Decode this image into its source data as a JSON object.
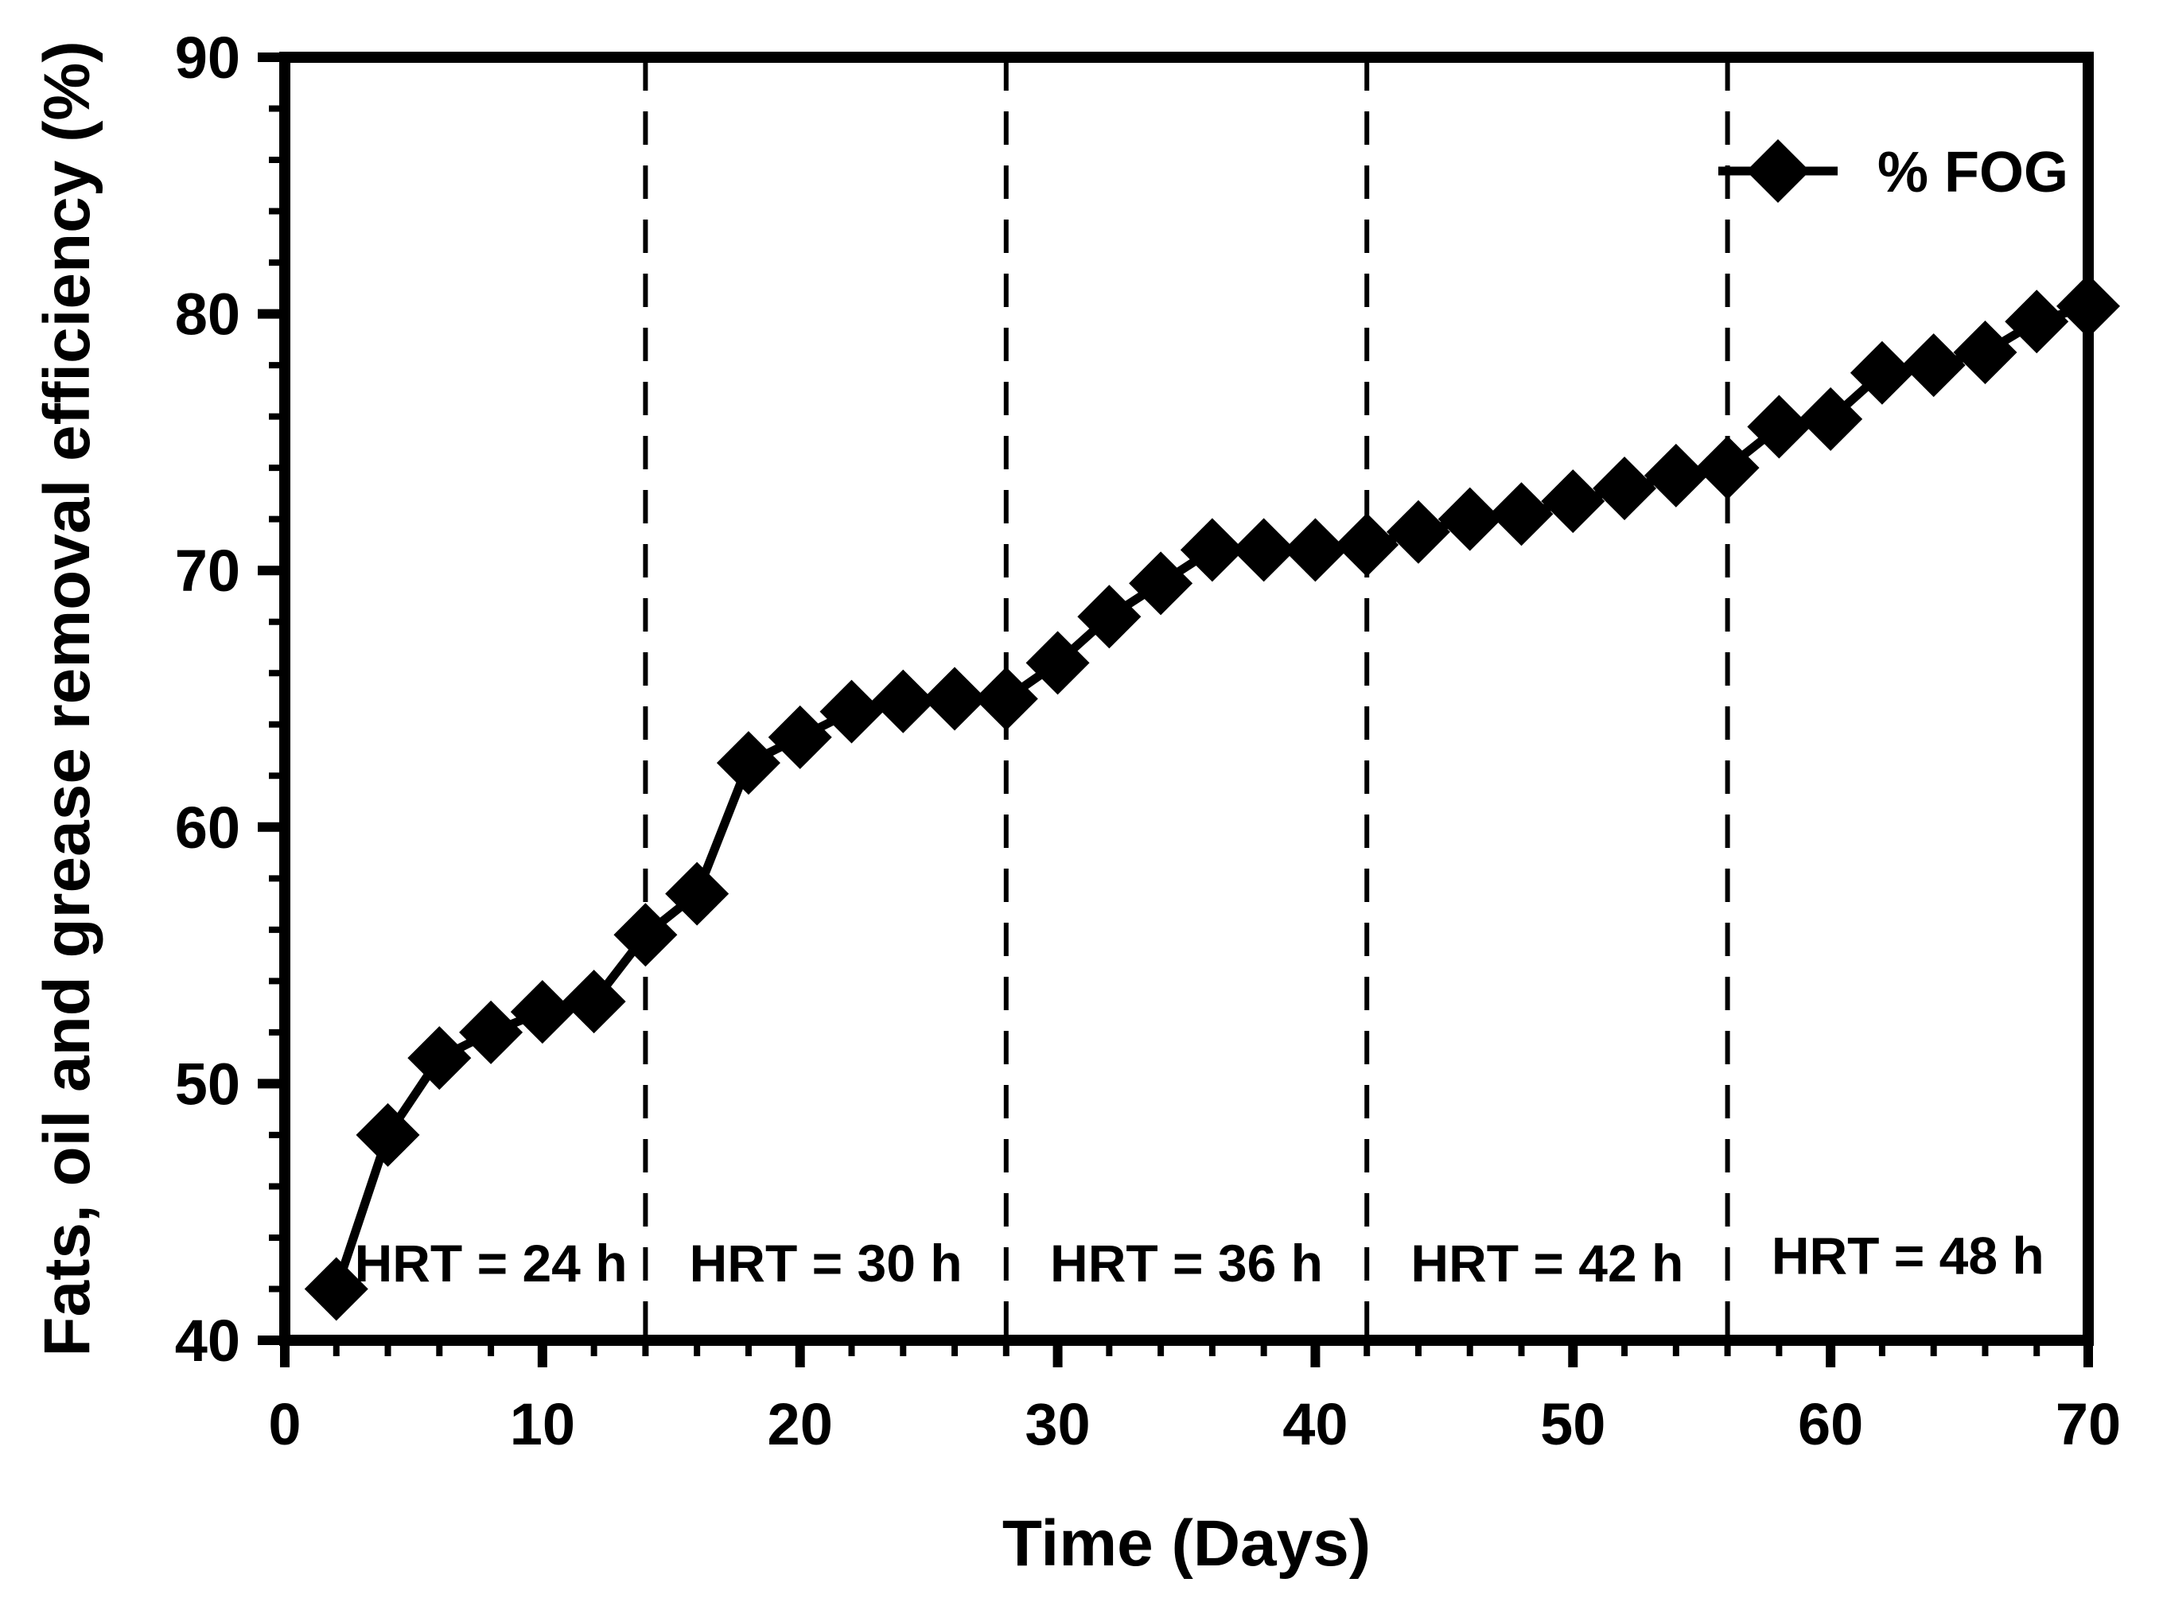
{
  "page": {
    "background": "#ffffff",
    "foreground": "#000000"
  },
  "chart_data": {
    "type": "line",
    "title": "",
    "xlabel": "Time (Days)",
    "ylabel": "Fats, oil and grease removal efficiency (%)",
    "xlim": [
      0,
      70
    ],
    "ylim": [
      40,
      90
    ],
    "x_major_step": 10,
    "x_minor_step": 2,
    "y_major_step": 10,
    "y_minor_step": 2,
    "grid": false,
    "frame": "full-box",
    "line_color": "#000000",
    "marker": "diamond",
    "legend": {
      "label": "% FOG",
      "position": "top-right-inside"
    },
    "dashed_vlines": [
      14,
      28,
      42,
      56
    ],
    "region_labels": [
      {
        "text": "HRT = 24 h",
        "x_day": 8,
        "y_value": 43
      },
      {
        "text": "HRT = 30 h",
        "x_day": 21,
        "y_value": 43
      },
      {
        "text": "HRT = 36 h",
        "x_day": 35,
        "y_value": 43
      },
      {
        "text": "HRT = 42 h",
        "x_day": 49,
        "y_value": 43
      },
      {
        "text": "HRT = 48 h",
        "x_day": 63,
        "y_value": 43.3
      }
    ],
    "series": [
      {
        "name": "% FOG",
        "x": [
          2,
          4,
          6,
          8,
          10,
          12,
          14,
          16,
          18,
          20,
          22,
          24,
          26,
          28,
          30,
          32,
          34,
          36,
          38,
          40,
          42,
          44,
          46,
          48,
          50,
          52,
          54,
          56,
          58,
          60,
          62,
          64,
          66,
          68,
          70
        ],
        "y": [
          42,
          48,
          51,
          52,
          52.8,
          53.2,
          55.8,
          57.4,
          62.5,
          63.5,
          64.5,
          64.9,
          65,
          65,
          66.4,
          68.2,
          69.5,
          70.8,
          70.8,
          70.8,
          71,
          71.5,
          72,
          72.2,
          72.7,
          73.2,
          73.7,
          74,
          75.6,
          75.9,
          77.7,
          78,
          78.5,
          79.7,
          80.3
        ]
      }
    ],
    "x_tick_labels": [
      "0",
      "10",
      "20",
      "30",
      "40",
      "50",
      "60",
      "70"
    ],
    "y_tick_labels": [
      "40",
      "50",
      "60",
      "70",
      "80",
      "90"
    ]
  }
}
